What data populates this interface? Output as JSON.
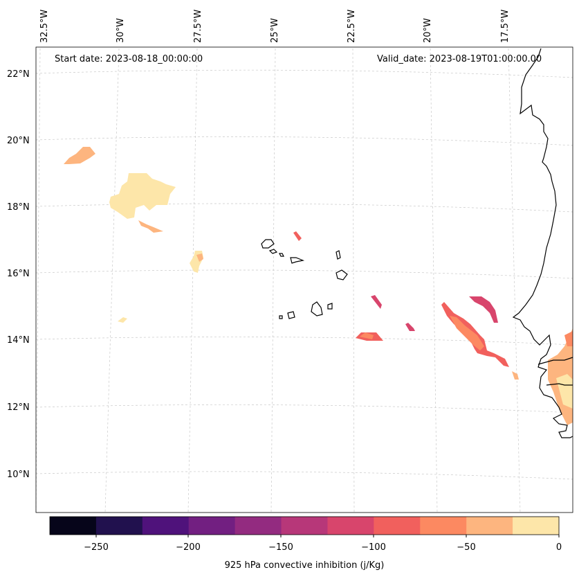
{
  "header": {
    "start_date": "Start date: 2023-08-18_00:00:00",
    "valid_date": "Valid_date: 2023-08-19T01:00:00.00"
  },
  "map": {
    "projection": "conic (Lambert-like), lon/lat gridlines dashed",
    "extent": {
      "lon": [
        -33.0,
        -15.5
      ],
      "lat": [
        9.0,
        22.5
      ]
    },
    "lon_ticks": [
      "32.5°W",
      "30°W",
      "27.5°W",
      "25°W",
      "22.5°W",
      "20°W",
      "17.5°W"
    ],
    "lat_ticks": [
      "22°N",
      "20°N",
      "18°N",
      "16°N",
      "14°N",
      "12°N",
      "10°N"
    ],
    "gridlines": true,
    "coastline_color": "#000000",
    "features": [
      "West African coastline (Senegal, Gambia, Guinea-Bissau)",
      "Cape Verde islands"
    ]
  },
  "colorbar": {
    "label": "925 hPa convective inhibition (j/Kg)",
    "ticks": [
      "−250",
      "−200",
      "−150",
      "−100",
      "−50",
      "0"
    ],
    "levels": [
      -275,
      -250,
      -225,
      -200,
      -175,
      -150,
      -125,
      -100,
      -75,
      -50,
      -25,
      0
    ],
    "colors": [
      "#06051a",
      "#21114e",
      "#4f127b",
      "#721f81",
      "#932b80",
      "#b73779",
      "#d8456c",
      "#f1605d",
      "#fc8961",
      "#fdb57f",
      "#fde6a9"
    ]
  },
  "fields": [
    {
      "region": "far west north patch",
      "value_range": [
        -50,
        -25
      ]
    },
    {
      "region": "large northwest patch",
      "value_range": [
        -25,
        0
      ]
    },
    {
      "region": "near Cape Verde north",
      "value_range": [
        -100,
        -75
      ]
    },
    {
      "region": "central patches",
      "value_range": [
        -125,
        -50
      ]
    },
    {
      "region": "east band near coast",
      "value_range": [
        -125,
        -25
      ]
    },
    {
      "region": "coastal Senegal",
      "value_range": [
        -50,
        -25
      ]
    }
  ]
}
